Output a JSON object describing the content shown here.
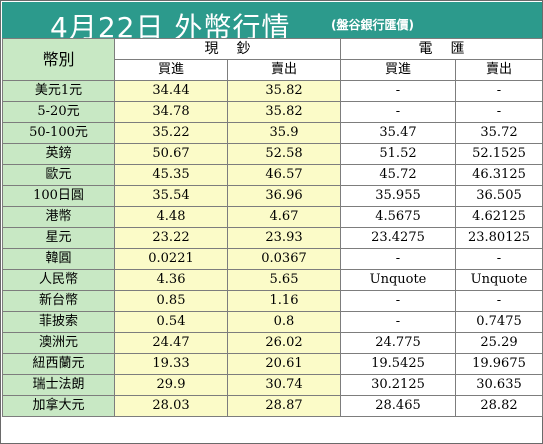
{
  "title": {
    "main": "4月22日 外幣行情",
    "source": "(盤谷銀行匯價)"
  },
  "header": {
    "currency_label": "幣別",
    "cash_label": "現鈔",
    "tt_label": "電匯",
    "buy_label": "買進",
    "sell_label": "賣出"
  },
  "colors": {
    "title_bg": "#2c9a8c",
    "name_bg": "#c8e8c4",
    "cash_bg": "#fbfbc8"
  },
  "rows": [
    {
      "name": "美元1元",
      "cash_buy": "34.44",
      "cash_sell": "35.82",
      "tt_buy": "-",
      "tt_sell": "-"
    },
    {
      "name": "5-20元",
      "cash_buy": "34.78",
      "cash_sell": "35.82",
      "tt_buy": "-",
      "tt_sell": "-"
    },
    {
      "name": "50-100元",
      "cash_buy": "35.22",
      "cash_sell": "35.9",
      "tt_buy": "35.47",
      "tt_sell": "35.72"
    },
    {
      "name": "英鎊",
      "cash_buy": "50.67",
      "cash_sell": "52.58",
      "tt_buy": "51.52",
      "tt_sell": "52.1525"
    },
    {
      "name": "歐元",
      "cash_buy": "45.35",
      "cash_sell": "46.57",
      "tt_buy": "45.72",
      "tt_sell": "46.3125"
    },
    {
      "name": "100日圓",
      "cash_buy": "35.54",
      "cash_sell": "36.96",
      "tt_buy": "35.955",
      "tt_sell": "36.505"
    },
    {
      "name": "港幣",
      "cash_buy": "4.48",
      "cash_sell": "4.67",
      "tt_buy": "4.5675",
      "tt_sell": "4.62125"
    },
    {
      "name": "星元",
      "cash_buy": "23.22",
      "cash_sell": "23.93",
      "tt_buy": "23.4275",
      "tt_sell": "23.80125"
    },
    {
      "name": "韓圓",
      "cash_buy": "0.0221",
      "cash_sell": "0.0367",
      "tt_buy": "-",
      "tt_sell": "-"
    },
    {
      "name": "人民幣",
      "cash_buy": "4.36",
      "cash_sell": "5.65",
      "tt_buy": "Unquote",
      "tt_sell": "Unquote"
    },
    {
      "name": "新台幣",
      "cash_buy": "0.85",
      "cash_sell": "1.16",
      "tt_buy": "-",
      "tt_sell": "-"
    },
    {
      "name": "菲披索",
      "cash_buy": "0.54",
      "cash_sell": "0.8",
      "tt_buy": "-",
      "tt_sell": "0.7475"
    },
    {
      "name": "澳洲元",
      "cash_buy": "24.47",
      "cash_sell": "26.02",
      "tt_buy": "24.775",
      "tt_sell": "25.29"
    },
    {
      "name": "紐西蘭元",
      "cash_buy": "19.33",
      "cash_sell": "20.61",
      "tt_buy": "19.5425",
      "tt_sell": "19.9675"
    },
    {
      "name": "瑞士法朗",
      "cash_buy": "29.9",
      "cash_sell": "30.74",
      "tt_buy": "30.2125",
      "tt_sell": "30.635"
    },
    {
      "name": "加拿大元",
      "cash_buy": "28.03",
      "cash_sell": "28.87",
      "tt_buy": "28.465",
      "tt_sell": "28.82"
    }
  ]
}
